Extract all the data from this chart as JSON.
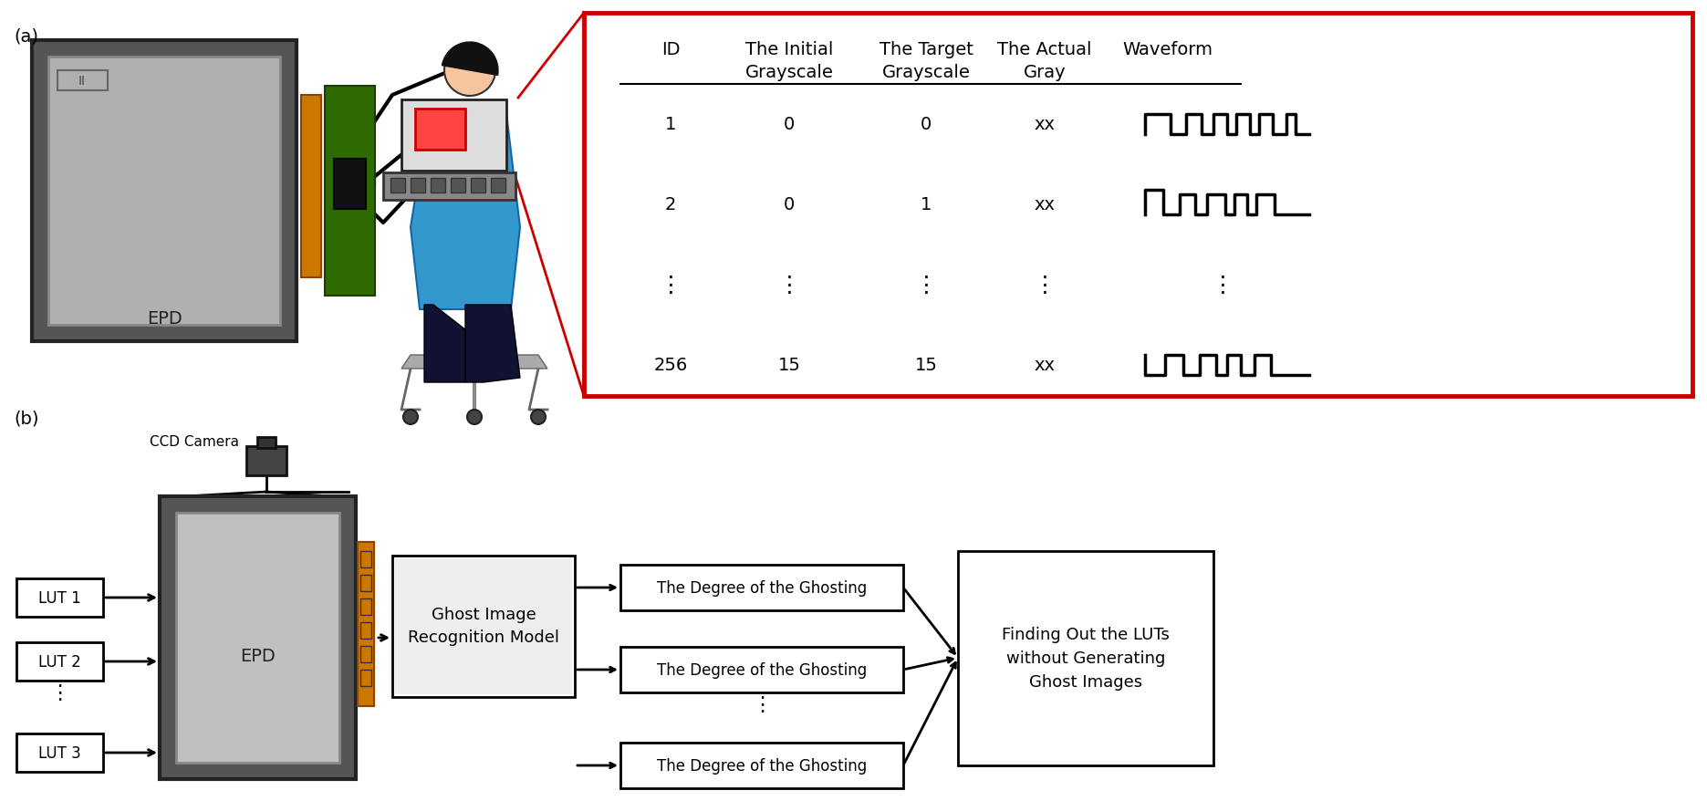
{
  "fig_width": 18.71,
  "fig_height": 8.79,
  "bg_color": "#ffffff",
  "label_a": "(a)",
  "label_b": "(b)",
  "table_header": [
    "ID",
    "The Initial\nGrayscale",
    "The Target\nGrayscale",
    "The Actual\nGray",
    "Waveform"
  ],
  "table_rows": [
    [
      "1",
      "0",
      "0",
      "xx"
    ],
    [
      "2",
      "0",
      "1",
      "xx"
    ],
    [
      "⋮",
      "⋮",
      "⋮",
      "⋮"
    ],
    [
      "256",
      "15",
      "15",
      "xx"
    ]
  ],
  "epd_color": "#c0c0c0",
  "epd_dark": "#404040",
  "epd_label": "EPD",
  "lut_labels": [
    "LUT 1",
    "LUT 2",
    "LUT 3"
  ],
  "ghost_box_label": "Ghost Image\nRecognition Model",
  "ghosting_label": "The Degree of the Ghosting",
  "finding_label": "Finding Out the LUTs\nwithout Generating\nGhost Images",
  "ccd_label": "CCD Camera",
  "red_box_color": "#cc0000",
  "orange_color": "#cc6600",
  "green_color": "#2d6a00",
  "dark_gray": "#333333",
  "light_gray": "#d0d0d0",
  "connector_color": "#cc7700"
}
